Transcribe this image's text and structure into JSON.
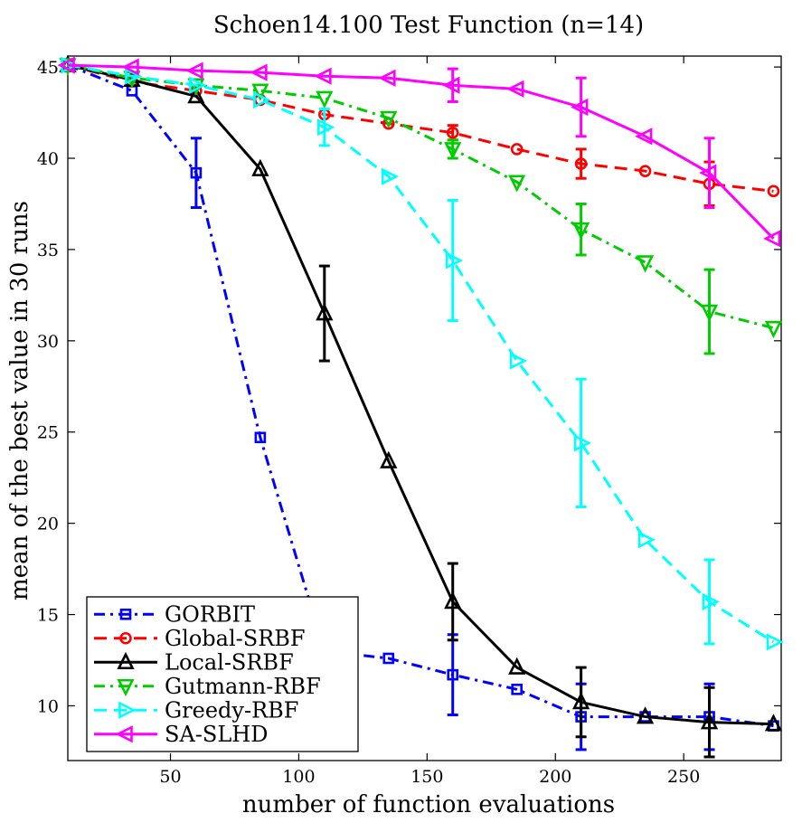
{
  "chart_data": {
    "type": "line",
    "title": "Schoen14.100 Test Function (n=14)",
    "xlabel": "number of function evaluations",
    "ylabel": "mean of the best value in 30 runs",
    "xlim": [
      10,
      288
    ],
    "ylim": [
      7,
      45.6
    ],
    "xticks": [
      50,
      100,
      150,
      200,
      250
    ],
    "yticks": [
      10,
      15,
      20,
      25,
      30,
      35,
      40,
      45
    ],
    "grid": false,
    "legend_position": "bottom-left",
    "series": [
      {
        "name": "GORBIT",
        "color": "#0000ff",
        "line_style": "dash-dot",
        "marker": "square",
        "x": [
          10,
          35,
          60,
          85,
          110,
          135,
          160,
          185,
          210,
          235,
          260,
          285
        ],
        "y": [
          45.1,
          43.7,
          39.2,
          24.7,
          13.0,
          12.6,
          11.7,
          10.9,
          9.4,
          9.4,
          9.4,
          8.9
        ],
        "error": [
          null,
          null,
          1.9,
          null,
          null,
          null,
          2.2,
          null,
          1.8,
          null,
          1.8,
          null
        ]
      },
      {
        "name": "Global-SRBF",
        "color": "#ff0000",
        "line_style": "dashed",
        "marker": "circle",
        "x": [
          10,
          35,
          60,
          85,
          110,
          135,
          160,
          185,
          210,
          235,
          260,
          285
        ],
        "y": [
          45.1,
          44.2,
          43.7,
          43.2,
          42.4,
          41.9,
          41.4,
          40.5,
          39.7,
          39.3,
          38.6,
          38.2
        ],
        "error": [
          null,
          null,
          null,
          null,
          null,
          null,
          0.4,
          null,
          0.8,
          null,
          1.2,
          null
        ]
      },
      {
        "name": "Local-SRBF",
        "color": "#000000",
        "line_style": "solid",
        "marker": "triangle-up",
        "x": [
          10,
          35,
          60,
          85,
          110,
          135,
          160,
          185,
          210,
          235,
          260,
          285
        ],
        "y": [
          45.1,
          44.3,
          43.4,
          39.4,
          31.5,
          23.4,
          15.7,
          12.1,
          10.2,
          9.4,
          9.1,
          9.0
        ],
        "error": [
          null,
          null,
          null,
          null,
          2.6,
          null,
          2.1,
          null,
          1.9,
          null,
          1.9,
          null
        ]
      },
      {
        "name": "Gutmann-RBF",
        "color": "#00cc00",
        "line_style": "dash-dot",
        "marker": "triangle-down",
        "x": [
          10,
          35,
          60,
          85,
          110,
          135,
          160,
          185,
          210,
          235,
          260,
          285
        ],
        "y": [
          45.1,
          44.4,
          44.0,
          43.7,
          43.3,
          42.2,
          40.5,
          38.7,
          36.1,
          34.3,
          31.6,
          30.7
        ],
        "error": [
          null,
          null,
          null,
          null,
          null,
          null,
          0.5,
          null,
          1.4,
          null,
          2.3,
          null
        ]
      },
      {
        "name": "Greedy-RBF",
        "color": "#00ffff",
        "line_style": "dashed",
        "marker": "triangle-right",
        "x": [
          10,
          35,
          60,
          85,
          110,
          135,
          160,
          185,
          210,
          235,
          260,
          285
        ],
        "y": [
          45.1,
          44.5,
          44.0,
          43.2,
          41.7,
          39.0,
          34.4,
          28.9,
          24.4,
          19.1,
          15.7,
          13.5
        ],
        "error": [
          null,
          null,
          null,
          null,
          1.0,
          null,
          3.3,
          null,
          3.5,
          null,
          2.3,
          null
        ]
      },
      {
        "name": "SA-SLHD",
        "color": "#ff00ff",
        "line_style": "solid",
        "marker": "triangle-left",
        "x": [
          10,
          35,
          60,
          85,
          110,
          135,
          160,
          185,
          210,
          235,
          260,
          285
        ],
        "y": [
          45.1,
          45.0,
          44.8,
          44.7,
          44.5,
          44.4,
          44.0,
          43.8,
          42.8,
          41.2,
          39.2,
          35.6
        ],
        "error": [
          null,
          null,
          null,
          null,
          null,
          null,
          0.9,
          null,
          1.6,
          null,
          1.9,
          null
        ]
      }
    ]
  }
}
